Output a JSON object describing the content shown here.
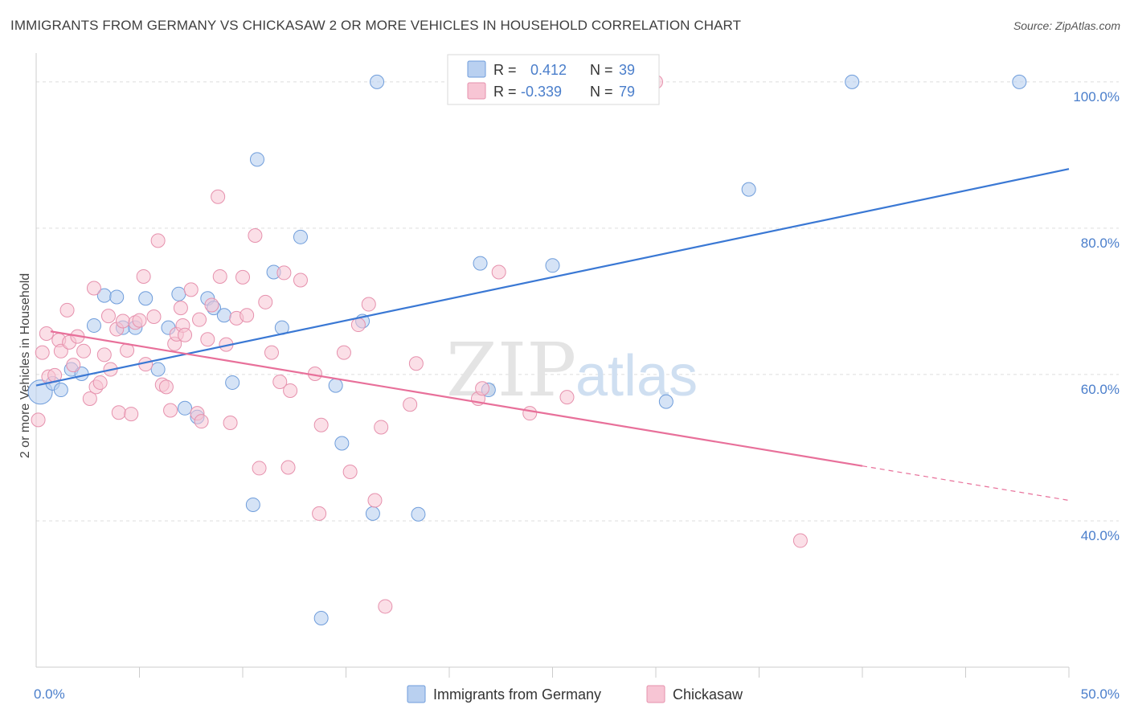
{
  "title": "IMMIGRANTS FROM GERMANY VS CHICKASAW 2 OR MORE VEHICLES IN HOUSEHOLD CORRELATION CHART",
  "source": "Source: ZipAtlas.com",
  "watermark": {
    "zip": "ZIP",
    "atlas": "atlas"
  },
  "legend": {
    "rows": [
      {
        "r_label": "R =",
        "r_value": "0.412",
        "n_label": "N =",
        "n_value": "39"
      },
      {
        "r_label": "R =",
        "r_value": "-0.339",
        "n_label": "N =",
        "n_value": "79"
      }
    ]
  },
  "bottom_legend": [
    "Immigrants from Germany",
    "Chickasaw"
  ],
  "colors": {
    "blue_fill": "#b9d0f0",
    "blue_stroke": "#6f9ddb",
    "blue_line": "#3a78d4",
    "pink_fill": "#f7c5d4",
    "pink_stroke": "#e691ad",
    "pink_line": "#e8709a",
    "tick_text": "#4a7ecb",
    "grid": "#dddddd"
  },
  "chart_data": {
    "type": "scatter",
    "title": "IMMIGRANTS FROM GERMANY VS CHICKASAW 2 OR MORE VEHICLES IN HOUSEHOLD CORRELATION CHART",
    "xlabel": "",
    "ylabel": "2 or more Vehicles in Household",
    "xlim": [
      0,
      50
    ],
    "ylim": [
      20,
      103.5
    ],
    "x_tick_labels": [
      "0.0%",
      "50.0%"
    ],
    "y_ticks": [
      40,
      60,
      80,
      100
    ],
    "y_tick_labels": [
      "40.0%",
      "60.0%",
      "80.0%",
      "100.0%"
    ],
    "grid": true,
    "legend_position": "top-center",
    "series": [
      {
        "name": "Immigrants from Germany",
        "color": "#6f9ddb",
        "trend": {
          "x": [
            0,
            50
          ],
          "y": [
            58.5,
            88.1
          ]
        },
        "points": [
          [
            0.2,
            57.6
          ],
          [
            0.8,
            58.8
          ],
          [
            1.2,
            57.9
          ],
          [
            1.7,
            60.7
          ],
          [
            2.2,
            60.1
          ],
          [
            2.8,
            66.7
          ],
          [
            3.3,
            70.8
          ],
          [
            3.9,
            70.6
          ],
          [
            4.2,
            66.4
          ],
          [
            4.8,
            66.4
          ],
          [
            5.3,
            70.4
          ],
          [
            5.9,
            60.7
          ],
          [
            6.4,
            66.4
          ],
          [
            6.9,
            71.0
          ],
          [
            7.2,
            55.4
          ],
          [
            7.8,
            54.2
          ],
          [
            8.3,
            70.4
          ],
          [
            8.6,
            69.1
          ],
          [
            9.1,
            68.1
          ],
          [
            9.5,
            58.9
          ],
          [
            10.5,
            42.2
          ],
          [
            10.7,
            89.4
          ],
          [
            11.5,
            74.0
          ],
          [
            11.9,
            66.4
          ],
          [
            12.8,
            78.8
          ],
          [
            13.8,
            26.7
          ],
          [
            14.5,
            58.5
          ],
          [
            14.8,
            50.6
          ],
          [
            15.8,
            67.3
          ],
          [
            16.3,
            41.0
          ],
          [
            16.5,
            100.0
          ],
          [
            18.5,
            40.9
          ],
          [
            21.5,
            75.2
          ],
          [
            21.9,
            57.9
          ],
          [
            25.0,
            74.9
          ],
          [
            30.5,
            56.3
          ],
          [
            34.5,
            85.3
          ],
          [
            39.5,
            100.0
          ],
          [
            47.6,
            100.0
          ]
        ]
      },
      {
        "name": "Chickasaw",
        "color": "#e691ad",
        "trend": {
          "x": [
            0.7,
            40.0
          ],
          "y": [
            65.9,
            47.5
          ]
        },
        "trend_dashed": {
          "x": [
            40.0,
            50.0
          ],
          "y": [
            47.5,
            42.8
          ]
        },
        "points": [
          [
            0.1,
            53.8
          ],
          [
            0.3,
            63.0
          ],
          [
            0.5,
            65.6
          ],
          [
            0.6,
            59.7
          ],
          [
            0.9,
            59.9
          ],
          [
            1.1,
            64.7
          ],
          [
            1.2,
            63.2
          ],
          [
            1.5,
            68.8
          ],
          [
            1.6,
            64.4
          ],
          [
            1.8,
            61.3
          ],
          [
            2.0,
            65.2
          ],
          [
            2.3,
            63.2
          ],
          [
            2.6,
            56.7
          ],
          [
            2.8,
            71.8
          ],
          [
            2.9,
            58.3
          ],
          [
            3.1,
            58.9
          ],
          [
            3.3,
            62.7
          ],
          [
            3.5,
            68.0
          ],
          [
            3.6,
            60.7
          ],
          [
            3.9,
            66.2
          ],
          [
            4.0,
            54.8
          ],
          [
            4.2,
            67.3
          ],
          [
            4.4,
            63.3
          ],
          [
            4.6,
            54.6
          ],
          [
            4.8,
            67.1
          ],
          [
            5.0,
            67.4
          ],
          [
            5.2,
            73.4
          ],
          [
            5.3,
            61.4
          ],
          [
            5.7,
            67.9
          ],
          [
            5.9,
            78.3
          ],
          [
            6.1,
            58.6
          ],
          [
            6.3,
            58.3
          ],
          [
            6.5,
            55.1
          ],
          [
            6.7,
            64.2
          ],
          [
            6.8,
            65.5
          ],
          [
            7.0,
            69.1
          ],
          [
            7.1,
            66.7
          ],
          [
            7.2,
            65.4
          ],
          [
            7.5,
            71.6
          ],
          [
            7.8,
            54.7
          ],
          [
            7.9,
            67.5
          ],
          [
            8.0,
            53.6
          ],
          [
            8.3,
            64.8
          ],
          [
            8.5,
            69.5
          ],
          [
            8.8,
            84.3
          ],
          [
            8.9,
            73.4
          ],
          [
            9.2,
            64.1
          ],
          [
            9.4,
            53.4
          ],
          [
            9.7,
            67.7
          ],
          [
            10.0,
            73.3
          ],
          [
            10.2,
            68.1
          ],
          [
            10.6,
            79.0
          ],
          [
            10.8,
            47.2
          ],
          [
            11.1,
            69.9
          ],
          [
            11.4,
            63.0
          ],
          [
            11.8,
            59.0
          ],
          [
            12.0,
            73.9
          ],
          [
            12.2,
            47.3
          ],
          [
            12.3,
            57.8
          ],
          [
            12.8,
            72.9
          ],
          [
            13.5,
            60.1
          ],
          [
            13.7,
            41.0
          ],
          [
            13.8,
            53.1
          ],
          [
            14.9,
            63.0
          ],
          [
            15.2,
            46.7
          ],
          [
            15.6,
            66.8
          ],
          [
            16.1,
            69.6
          ],
          [
            16.4,
            42.8
          ],
          [
            16.7,
            52.8
          ],
          [
            16.9,
            28.3
          ],
          [
            18.1,
            55.9
          ],
          [
            18.4,
            61.5
          ],
          [
            21.4,
            56.7
          ],
          [
            21.6,
            58.1
          ],
          [
            22.4,
            74.0
          ],
          [
            23.9,
            54.7
          ],
          [
            25.7,
            56.9
          ],
          [
            37.0,
            37.3
          ],
          [
            30.0,
            100.0
          ]
        ]
      }
    ]
  }
}
